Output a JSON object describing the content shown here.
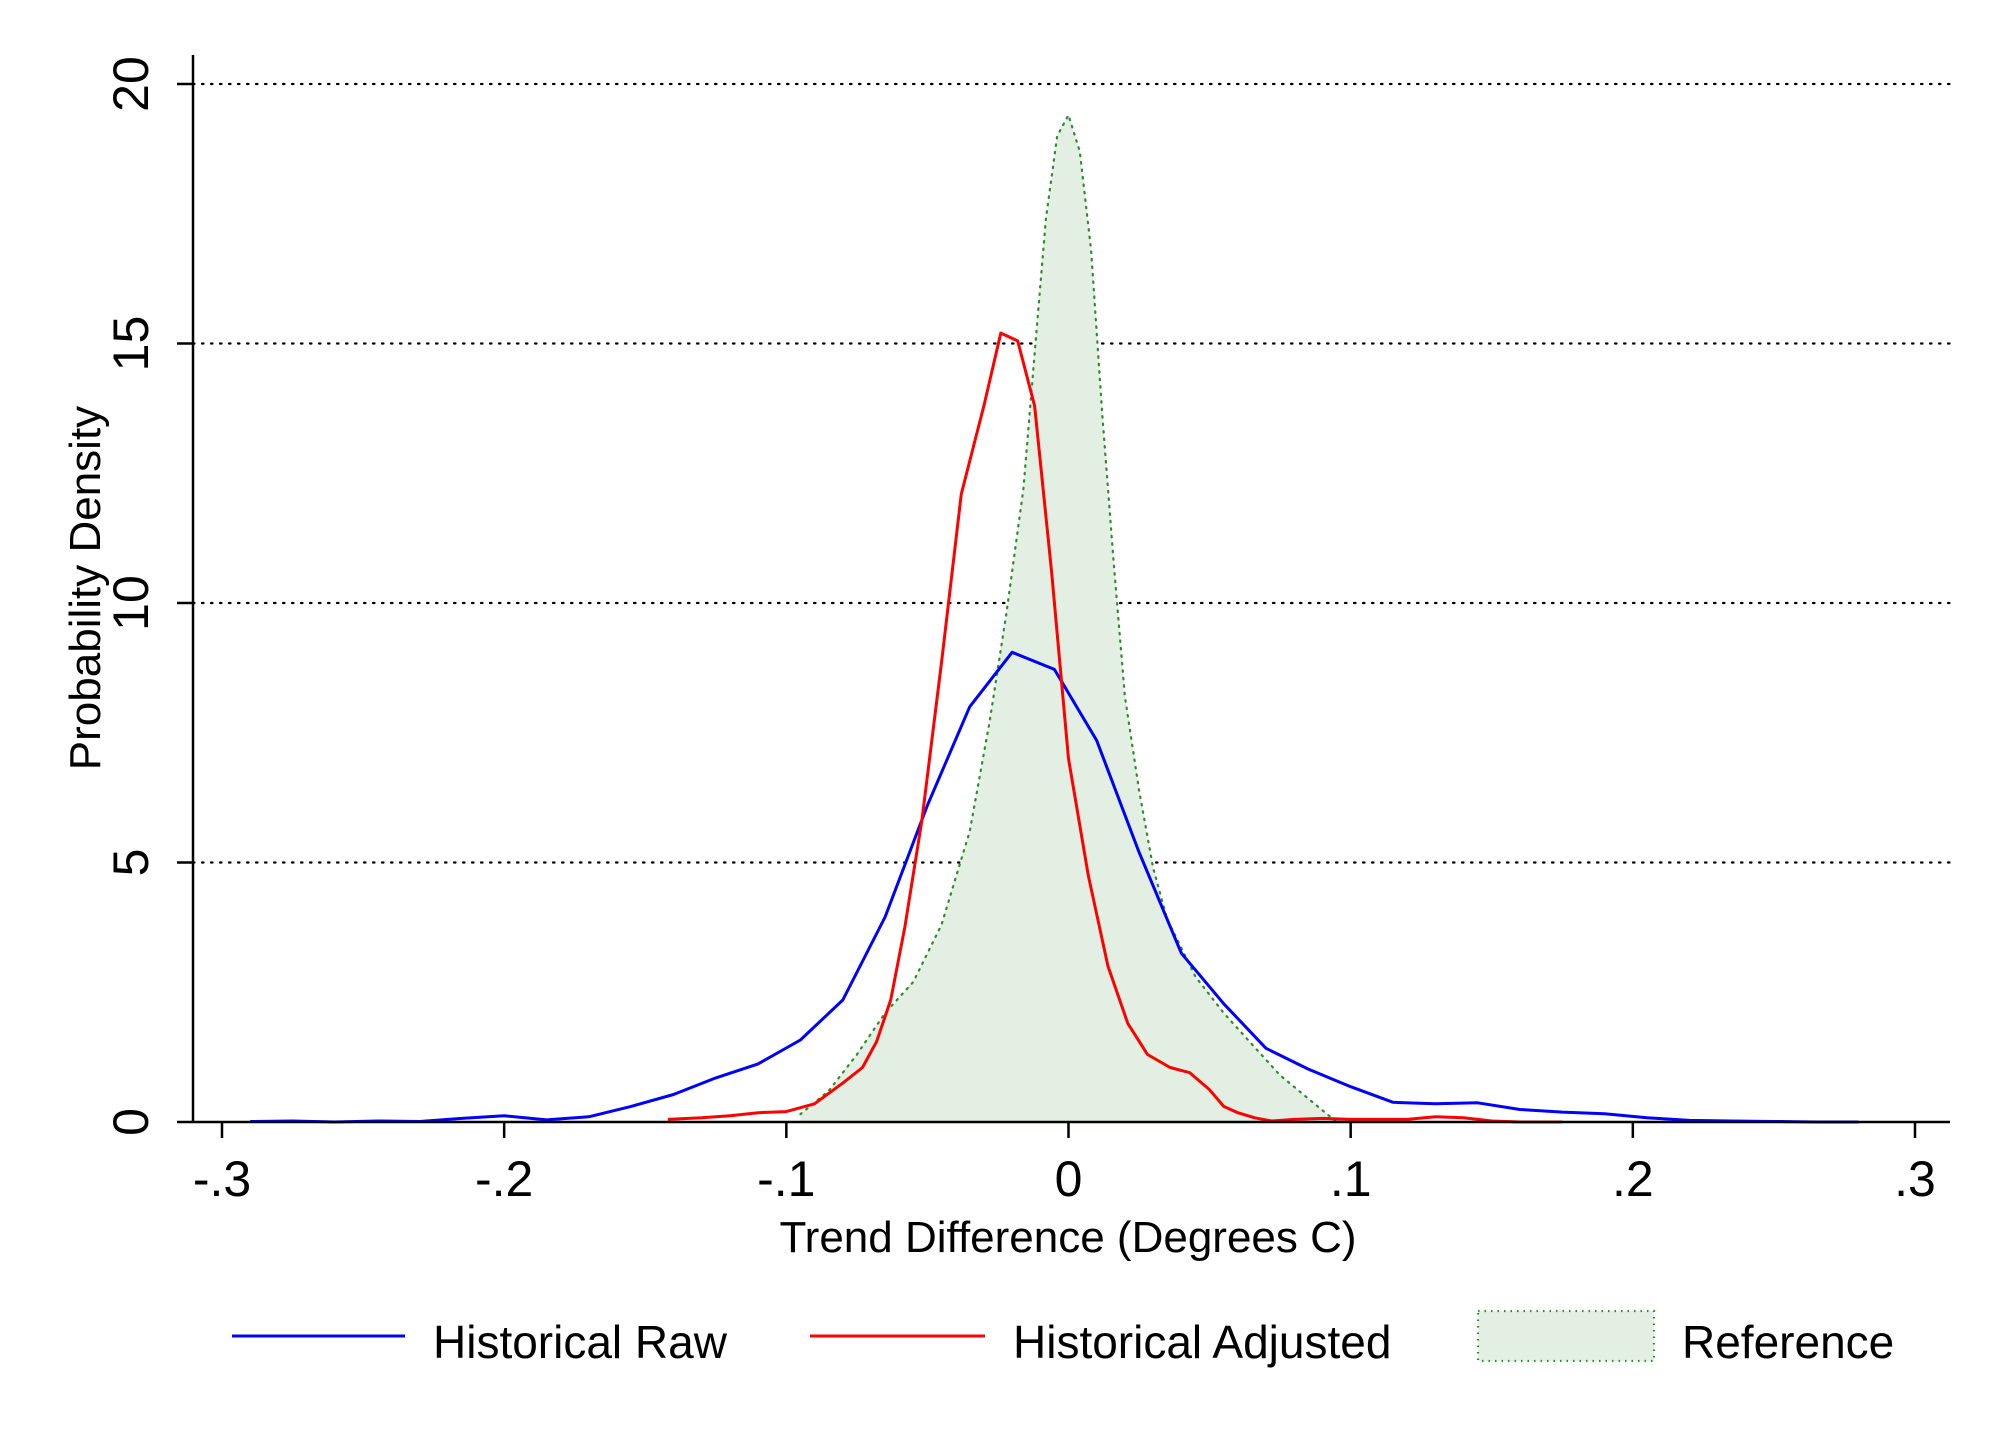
{
  "chart_data": {
    "type": "line",
    "title": "",
    "xlabel": "Trend Difference (Degrees C)",
    "ylabel": "Probability Density",
    "xlim": [
      -0.3,
      0.3
    ],
    "ylim": [
      0,
      20
    ],
    "xticks": [
      -0.3,
      -0.2,
      -0.1,
      0,
      0.1,
      0.2,
      0.3
    ],
    "xtick_labels": [
      "-.3",
      "-.2",
      "-.1",
      "0",
      ".1",
      ".2",
      ".3"
    ],
    "yticks": [
      0,
      5,
      10,
      15,
      20
    ],
    "ytick_labels": [
      "0",
      "5",
      "10",
      "15",
      "20"
    ],
    "grid": "horizontal dotted",
    "legend_position": "bottom",
    "series": [
      {
        "name": "Historical Raw",
        "style": "line",
        "color": "#0000ff",
        "x": [
          -0.29,
          -0.275,
          -0.26,
          -0.245,
          -0.23,
          -0.215,
          -0.2,
          -0.185,
          -0.17,
          -0.155,
          -0.14,
          -0.125,
          -0.11,
          -0.095,
          -0.08,
          -0.065,
          -0.05,
          -0.035,
          -0.02,
          -0.005,
          0.01,
          0.025,
          0.04,
          0.055,
          0.07,
          0.085,
          0.1,
          0.115,
          0.13,
          0.145,
          0.16,
          0.175,
          0.19,
          0.205,
          0.22,
          0.235,
          0.25,
          0.265,
          0.28
        ],
        "y": [
          0.01,
          0.02,
          0.0,
          0.02,
          0.01,
          0.07,
          0.12,
          0.04,
          0.1,
          0.3,
          0.53,
          0.85,
          1.12,
          1.58,
          2.35,
          3.95,
          6.1,
          8.0,
          9.05,
          8.72,
          7.35,
          5.2,
          3.25,
          2.28,
          1.42,
          1.02,
          0.68,
          0.38,
          0.35,
          0.37,
          0.24,
          0.19,
          0.16,
          0.08,
          0.03,
          0.02,
          0.01,
          0.0,
          0.0
        ]
      },
      {
        "name": "Historical Adjusted",
        "style": "line",
        "color": "#ff0000",
        "x": [
          -0.142,
          -0.13,
          -0.12,
          -0.11,
          -0.1,
          -0.09,
          -0.08,
          -0.073,
          -0.068,
          -0.063,
          -0.058,
          -0.052,
          -0.045,
          -0.038,
          -0.03,
          -0.024,
          -0.018,
          -0.012,
          -0.006,
          0.0,
          0.007,
          0.014,
          0.021,
          0.028,
          0.036,
          0.043,
          0.05,
          0.055,
          0.06,
          0.066,
          0.072,
          0.08,
          0.09,
          0.1,
          0.11,
          0.12,
          0.13,
          0.14,
          0.15,
          0.16,
          0.168,
          0.175
        ],
        "y": [
          0.05,
          0.08,
          0.12,
          0.18,
          0.2,
          0.35,
          0.75,
          1.05,
          1.55,
          2.35,
          3.75,
          5.8,
          8.85,
          12.1,
          13.8,
          15.2,
          15.05,
          13.8,
          10.6,
          7.0,
          4.75,
          3.0,
          1.9,
          1.3,
          1.05,
          0.95,
          0.62,
          0.3,
          0.18,
          0.08,
          0.02,
          0.05,
          0.07,
          0.05,
          0.05,
          0.05,
          0.1,
          0.08,
          0.02,
          0.0,
          0.0,
          0.0
        ]
      },
      {
        "name": "Reference",
        "style": "area",
        "fill": "#e3efe3",
        "color": "#2e8b2e",
        "x": [
          -0.095,
          -0.085,
          -0.075,
          -0.065,
          -0.055,
          -0.045,
          -0.035,
          -0.028,
          -0.022,
          -0.016,
          -0.012,
          -0.008,
          -0.004,
          0.0,
          0.004,
          0.008,
          0.012,
          0.016,
          0.02,
          0.025,
          0.03,
          0.035,
          0.045,
          0.055,
          0.065,
          0.075,
          0.085,
          0.095
        ],
        "y": [
          0.15,
          0.6,
          1.3,
          2.1,
          2.7,
          3.8,
          5.6,
          7.7,
          9.8,
          12.2,
          14.8,
          17.4,
          19.0,
          19.4,
          18.7,
          16.8,
          13.6,
          10.8,
          8.2,
          6.4,
          4.9,
          3.9,
          2.8,
          2.1,
          1.5,
          0.9,
          0.45,
          0.0
        ]
      }
    ]
  }
}
